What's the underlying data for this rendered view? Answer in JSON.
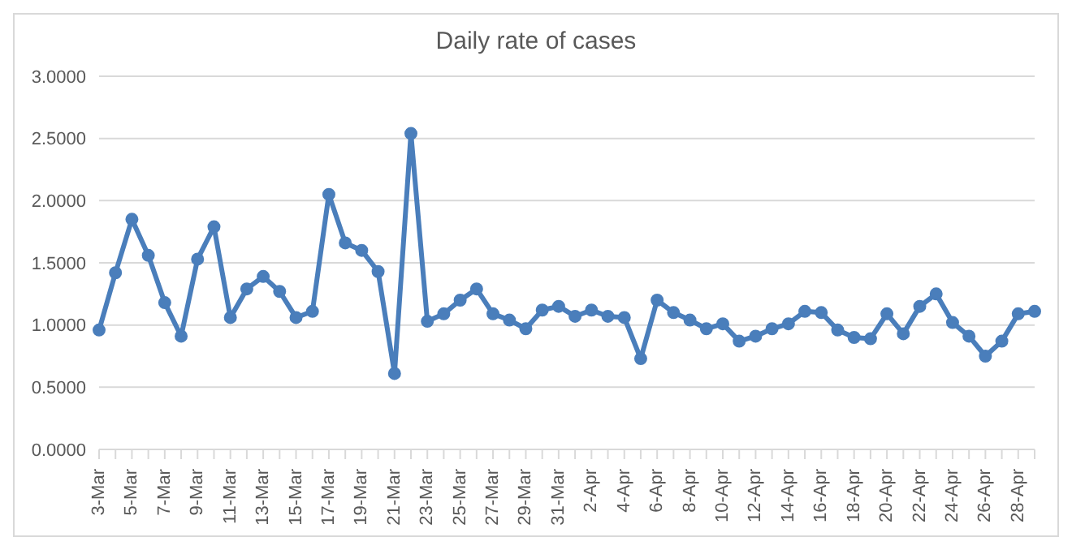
{
  "chart_data": {
    "type": "line",
    "title": "Daily rate of cases",
    "categories": [
      "3-Mar",
      null,
      "5-Mar",
      null,
      "7-Mar",
      null,
      "9-Mar",
      null,
      "11-Mar",
      null,
      "13-Mar",
      null,
      "15-Mar",
      null,
      "17-Mar",
      null,
      "19-Mar",
      null,
      "21-Mar",
      null,
      "23-Mar",
      null,
      "25-Mar",
      null,
      "27-Mar",
      null,
      "29-Mar",
      null,
      "31-Mar",
      null,
      "2-Apr",
      null,
      "4-Apr",
      null,
      "6-Apr",
      null,
      "8-Apr",
      null,
      "10-Apr",
      null,
      "12-Apr",
      null,
      "14-Apr",
      null,
      "16-Apr",
      null,
      "18-Apr",
      null,
      "20-Apr",
      null,
      "22-Apr",
      null,
      "24-Apr",
      null,
      "26-Apr",
      null,
      "28-Apr",
      null
    ],
    "series": [
      {
        "color": "#4a7ebb",
        "values": [
          0.96,
          1.42,
          1.85,
          1.56,
          1.18,
          0.91,
          1.53,
          1.79,
          1.06,
          1.29,
          1.39,
          1.27,
          1.06,
          1.11,
          2.05,
          1.66,
          1.6,
          1.43,
          0.61,
          2.54,
          1.03,
          1.09,
          1.2,
          1.29,
          1.09,
          1.04,
          0.97,
          1.12,
          1.15,
          1.07,
          1.12,
          1.07,
          1.06,
          0.73,
          1.2,
          1.1,
          1.04,
          0.97,
          1.01,
          0.87,
          0.91,
          0.97,
          1.01,
          1.11,
          1.1,
          0.96,
          0.9,
          0.89,
          1.09,
          0.93,
          1.15,
          1.25,
          1.02,
          0.91,
          0.75,
          0.87,
          1.09,
          1.11
        ]
      }
    ],
    "ylim": [
      0,
      3
    ],
    "yticks": [
      {
        "value": 0,
        "label": "0.0000"
      },
      {
        "value": 0.5,
        "label": "0.5000"
      },
      {
        "value": 1,
        "label": "1.0000"
      },
      {
        "value": 1.5,
        "label": "1.5000"
      },
      {
        "value": 2,
        "label": "2.0000"
      },
      {
        "value": 2.5,
        "label": "2.5000"
      },
      {
        "value": 3,
        "label": "3.0000"
      }
    ],
    "grid": "y",
    "legend": false,
    "marker": "circle",
    "line_style": "solid"
  }
}
